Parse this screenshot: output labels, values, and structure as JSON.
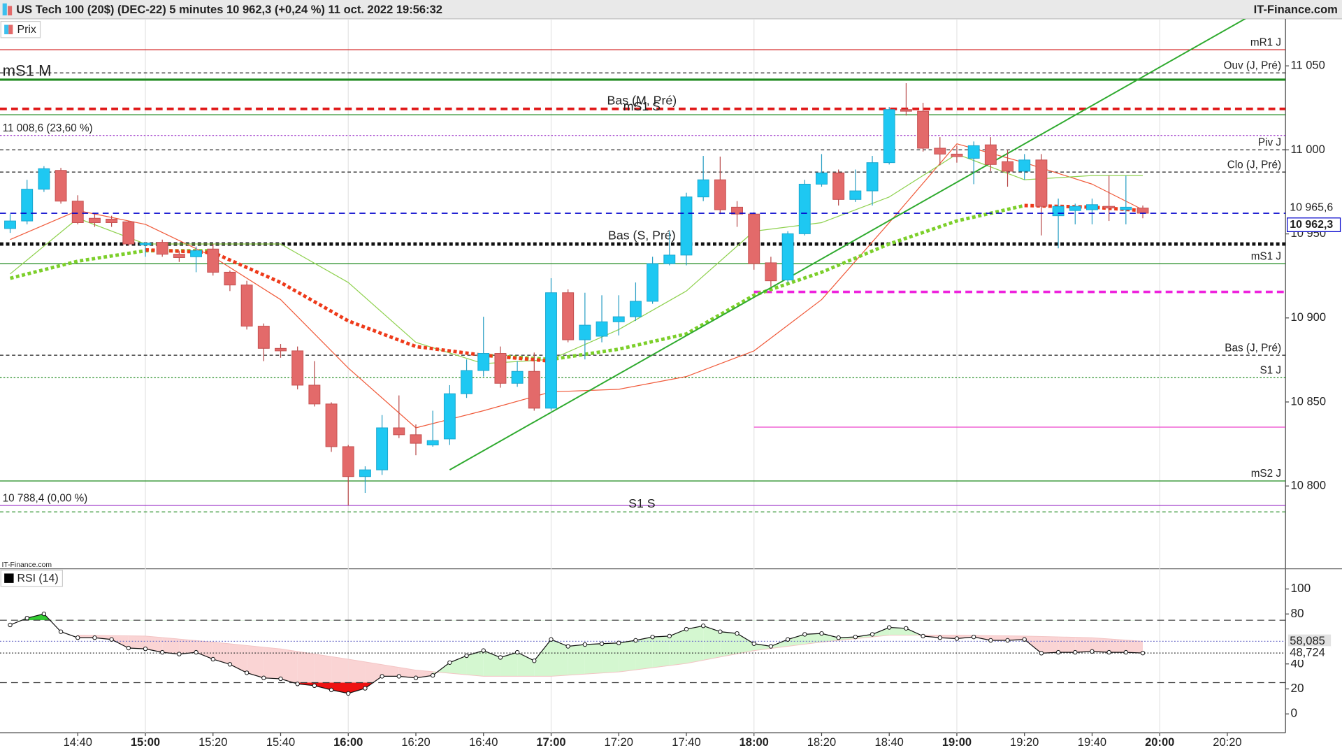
{
  "chart_data": [
    {
      "type": "candlestick",
      "title": "US Tech 100 (20$) (DEC-22) 5 minutes 10 962,3 (+0,24 %) 11 oct. 2022 19:56:32",
      "source": "IT-Finance.com",
      "watermark": "IT-Finance.com",
      "legend": "Prix",
      "up_color": "#1ec8f2",
      "down_color": "#e36a6a",
      "xlim": [
        857,
        1236.7
      ],
      "xticks": [
        {
          "value": 880,
          "label": "14:40"
        },
        {
          "value": 900,
          "label": "15:00"
        },
        {
          "value": 920,
          "label": "15:20"
        },
        {
          "value": 940,
          "label": "15:40"
        },
        {
          "value": 960,
          "label": "16:00"
        },
        {
          "value": 980,
          "label": "16:20"
        },
        {
          "value": 1000,
          "label": "16:40"
        },
        {
          "value": 1020,
          "label": "17:00"
        },
        {
          "value": 1040,
          "label": "17:20"
        },
        {
          "value": 1060,
          "label": "17:40"
        },
        {
          "value": 1080,
          "label": "18:00"
        },
        {
          "value": 1100,
          "label": "18:20"
        },
        {
          "value": 1120,
          "label": "18:40"
        },
        {
          "value": 1140,
          "label": "19:00"
        },
        {
          "value": 1160,
          "label": "19:20"
        },
        {
          "value": 1180,
          "label": "19:40"
        },
        {
          "value": 1200,
          "label": "20:00"
        },
        {
          "value": 1220,
          "label": "20:20"
        }
      ],
      "ylim": [
        10753,
        11079
      ],
      "yticks": [
        {
          "value": 11050,
          "label": "11 050"
        },
        {
          "value": 11000,
          "label": "11 000"
        },
        {
          "value": 10950,
          "label": "10 950"
        },
        {
          "value": 10900,
          "label": "10 900"
        },
        {
          "value": 10850,
          "label": "10 850"
        },
        {
          "value": 10800,
          "label": "10 800"
        }
      ],
      "x": [
        860,
        865,
        870,
        875,
        880,
        885,
        890,
        895,
        900,
        905,
        910,
        915,
        920,
        925,
        930,
        935,
        940,
        945,
        950,
        955,
        960,
        965,
        970,
        975,
        980,
        985,
        990,
        995,
        1000,
        1005,
        1010,
        1015,
        1020,
        1025,
        1030,
        1035,
        1040,
        1045,
        1050,
        1055,
        1060,
        1065,
        1070,
        1075,
        1080,
        1085,
        1090,
        1095,
        1100,
        1105,
        1110,
        1115,
        1120,
        1125,
        1130,
        1135,
        1140,
        1145,
        1150,
        1155,
        1160,
        1165,
        1170,
        1175,
        1180,
        1185,
        1190,
        1195
      ],
      "open": [
        10953.2,
        10957.7,
        10976.6,
        10987.8,
        10969.5,
        10959.3,
        10958.8,
        10957.2,
        10943.5,
        10945,
        10937.9,
        10936.4,
        10941,
        10927.2,
        10919.6,
        10895.1,
        10881.9,
        10880.4,
        10860,
        10848.8,
        10823.4,
        10805.6,
        10809.6,
        10834.6,
        10830.5,
        10824.4,
        10828,
        10854.9,
        10868.7,
        10878.9,
        10861.1,
        10868.2,
        10846.3,
        10915,
        10887,
        10889.1,
        10897.7,
        10900.7,
        10909.9,
        10932.3,
        10937.4,
        10972,
        10982.2,
        10965.9,
        10961.8,
        10932.8,
        10922.6,
        10950.1,
        10979.6,
        10986.3,
        10970.5,
        10975.6,
        10992.4,
        11024,
        11023,
        11001,
        10997.5,
        10995,
        11003,
        10993,
        10987.3,
        10994,
        10960.8,
        10963.9,
        10964.4,
        10966.4,
        10964.4,
        10965.4
      ],
      "high": [
        10961.8,
        10982.2,
        10990.3,
        10989.3,
        10973,
        10961.8,
        10960.8,
        10957.7,
        10945,
        10946.6,
        10940,
        10942.5,
        10944,
        10928.2,
        10922.1,
        10896.7,
        10884.5,
        10883,
        10874.3,
        10849.8,
        10824.4,
        10811.7,
        10842.2,
        10853.9,
        10836.6,
        10844.8,
        10860,
        10875.3,
        10900.7,
        10883,
        10874.3,
        10879.4,
        10923.6,
        10917,
        10915,
        10913.5,
        10913.5,
        10921.1,
        10936.4,
        10951.6,
        10974.5,
        10996.4,
        10996,
        10969.5,
        10962.8,
        10936.4,
        10951.6,
        10982.2,
        10997.5,
        10988.3,
        10988.3,
        10996.4,
        11025.5,
        11039.7,
        11028,
        11007.6,
        11002.5,
        11005,
        11007.6,
        11000,
        10997.5,
        10997.5,
        10971,
        10968,
        10971,
        10984.7,
        10984.7,
        10966.9
      ],
      "low": [
        10950.6,
        10955.7,
        10975,
        10968,
        10955.7,
        10954.2,
        10954.2,
        10943,
        10936.4,
        10936.4,
        10933.3,
        10927.2,
        10925.2,
        10916,
        10893.1,
        10874.3,
        10876.3,
        10857.5,
        10847.3,
        10820.3,
        10788.4,
        10795.9,
        10806.6,
        10828.5,
        10818.3,
        10823.4,
        10824.4,
        10852.4,
        10865.1,
        10858.5,
        10859,
        10844.8,
        10844.8,
        10885.5,
        10875.3,
        10885.5,
        10889.6,
        10898.2,
        10908.4,
        10931.3,
        10931.3,
        10969.5,
        10961.8,
        10954.2,
        10928.7,
        10918.6,
        10921.1,
        10949.1,
        10978.1,
        10966.9,
        10969,
        10966.9,
        10991.3,
        11020.4,
        10999,
        10990.8,
        10992.4,
        10979.6,
        10987.3,
        10978.1,
        10982.2,
        10949.1,
        10941.4,
        10955.7,
        10955.7,
        10957.7,
        10955.7,
        10959.3
      ],
      "close": [
        10957.7,
        10976.6,
        10988.8,
        10969.5,
        10956.7,
        10956.7,
        10956.7,
        10944,
        10944.5,
        10937.9,
        10935.9,
        10940,
        10927.2,
        10919.6,
        10895.1,
        10881.9,
        10880.4,
        10860,
        10848.8,
        10823.4,
        10805.6,
        10809.6,
        10834.6,
        10830.5,
        10825.4,
        10827,
        10854.9,
        10868.7,
        10878.9,
        10861.1,
        10868.2,
        10846.3,
        10915,
        10887,
        10895.7,
        10897.7,
        10900.7,
        10909.9,
        10932.3,
        10937.4,
        10972,
        10982.2,
        10964.4,
        10961.8,
        10932.3,
        10922.1,
        10950.1,
        10979.6,
        10986.3,
        10970.5,
        10975.6,
        10992.4,
        11024,
        11023,
        11001,
        10997.5,
        10996,
        11002.5,
        10991.3,
        10987.3,
        10994,
        10966.4,
        10966.4,
        10966.4,
        10967.4,
        10965.4,
        10965.9,
        10962.3
      ],
      "overlay_x": [
        860,
        880,
        900,
        920,
        940,
        960,
        980,
        1000,
        1020,
        1040,
        1060,
        1080,
        1100,
        1120,
        1140,
        1160,
        1180,
        1195
      ],
      "overlays": [
        {
          "color": "#f05a3a",
          "style": "solid",
          "values": [
            10946.6,
            10963.9,
            10955.7,
            10936.4,
            10910.9,
            10870.2,
            10834.6,
            10844.8,
            10856,
            10857.5,
            10865.1,
            10880.4,
            10910.9,
            10956.7,
            11003.6,
            10992.4,
            10979.6,
            10964.4
          ]
        },
        {
          "color": "#8fd14f",
          "style": "solid",
          "values": [
            10926.2,
            10959.3,
            10944,
            10944,
            10944,
            10921.1,
            10885.5,
            10872.8,
            10875.3,
            10893.1,
            10916,
            10951.6,
            10956.7,
            10972,
            10997.5,
            10982.2,
            10984.7,
            10984.7
          ]
        },
        {
          "color": "#7ccf2a",
          "style": "bold-dotted",
          "values": [
            10923.6,
            10933.8,
            10940,
            10940,
            null,
            null,
            null,
            10877.8,
            10875.3,
            10881.4,
            10890.5,
            10913.5,
            10927.2,
            10944,
            10957.7,
            10966.9,
            null,
            null
          ]
        },
        {
          "color": "#ee3a1a",
          "style": "bold-dotted",
          "values": [
            null,
            null,
            10940.5,
            10938.9,
            10921.1,
            10898.2,
            10883,
            10877.8,
            10874.3,
            null,
            null,
            null,
            null,
            null,
            null,
            10966.9,
            10965.9,
            10963.9
          ]
        }
      ],
      "trendline": {
        "color": "#2eaa2e",
        "x": [
          990,
          1227
        ],
        "values": [
          10809.6,
          11080
        ]
      },
      "levels": [
        {
          "value": 11059.6,
          "label": "mR1 J",
          "color": "#d42020",
          "style": "solid",
          "label_pos": "right"
        },
        {
          "value": 11045.8,
          "label": "Ouv (J, Pré)",
          "color": "#222222",
          "style": "dashed",
          "label_pos": "right"
        },
        {
          "value": 11041.8,
          "label": "mS1 M",
          "color": "#1f8a1f",
          "style": "bold",
          "label_pos": "left"
        },
        {
          "value": 11024.4,
          "label": "Bas (M, Pré)",
          "color": "#e01818",
          "style": "bold-dashed",
          "label_pos": "center"
        },
        {
          "value": 11020.9,
          "label": "mS1 S",
          "color": "#1f8a1f",
          "style": "solid",
          "label_pos": "center"
        },
        {
          "value": 11008.6,
          "label": "11 008,6 (23,60 %)",
          "color": "#9b30c8",
          "style": "dotted",
          "label_pos": "left"
        },
        {
          "value": 11000,
          "label": "Piv J",
          "color": "#222222",
          "style": "dashed",
          "label_pos": "right"
        },
        {
          "value": 10986.8,
          "label": "Clo (J, Pré)",
          "color": "#222222",
          "style": "dashed",
          "label_pos": "right"
        },
        {
          "value": 10944,
          "label": "Bas (S, Pré)",
          "color": "#111111",
          "style": "bold-dotted",
          "label_pos": "center"
        },
        {
          "value": 10932.3,
          "label": "mS1 J",
          "color": "#1f8a1f",
          "style": "solid",
          "label_pos": "right"
        },
        {
          "value": 10877.8,
          "label": "Bas (J, Pré)",
          "color": "#222222",
          "style": "dashed",
          "label_pos": "right"
        },
        {
          "value": 10864.5,
          "label": "S1 J",
          "color": "#1f8a1f",
          "style": "dotted",
          "label_pos": "right"
        },
        {
          "value": 10803,
          "label": "mS2 J",
          "color": "#1f8a1f",
          "style": "solid",
          "label_pos": "right"
        },
        {
          "value": 10788.4,
          "label": "10 788,4 (0,00 %)",
          "color": "#9b30c8",
          "style": "solid",
          "label_pos": "left"
        },
        {
          "value": 10784.6,
          "label": "S1 S",
          "color": "#1f8a1f",
          "style": "dashed",
          "label_pos": "center"
        }
      ],
      "zones": [
        {
          "value": 10915.5,
          "from": 1080,
          "color": "#ee22dd",
          "style": "bold-dashed"
        },
        {
          "value": 10835,
          "from": 1080,
          "color": "#ee44cc",
          "style": "solid"
        }
      ],
      "price_labels": [
        {
          "value": 10965.6,
          "label": "10 965,6",
          "color": "#ff3300",
          "line": false
        },
        {
          "value": 10962.3,
          "label": "10 962,3",
          "color": "#0000cc",
          "line": true
        }
      ]
    },
    {
      "type": "line",
      "legend": "RSI (14)",
      "color": "#111111",
      "x": [
        860,
        865,
        870,
        875,
        880,
        885,
        890,
        895,
        900,
        905,
        910,
        915,
        920,
        925,
        930,
        935,
        940,
        945,
        950,
        955,
        960,
        965,
        970,
        975,
        980,
        985,
        990,
        995,
        1000,
        1005,
        1010,
        1015,
        1020,
        1025,
        1030,
        1035,
        1040,
        1045,
        1050,
        1055,
        1060,
        1065,
        1070,
        1075,
        1080,
        1085,
        1090,
        1095,
        1100,
        1105,
        1110,
        1115,
        1120,
        1125,
        1130,
        1135,
        1140,
        1145,
        1150,
        1155,
        1160,
        1165,
        1170,
        1175,
        1180,
        1185,
        1190,
        1195
      ],
      "values": [
        71.2,
        76.7,
        80.1,
        65.8,
        61,
        61,
        59.6,
        52.7,
        52.1,
        49.3,
        47.9,
        49.3,
        43.8,
        39.7,
        32.9,
        28.8,
        28.1,
        24,
        22.6,
        19.2,
        16.4,
        20.5,
        30.1,
        30.1,
        28.8,
        30.8,
        41.1,
        46.6,
        50.7,
        45.2,
        49.3,
        42.5,
        59.6,
        54.1,
        55.5,
        56.2,
        56.8,
        58.9,
        61.6,
        62.3,
        67.8,
        70.5,
        65.8,
        64.4,
        56.2,
        54.1,
        59.6,
        63.7,
        64.4,
        61,
        61.6,
        63.7,
        69.2,
        68.5,
        62.3,
        61,
        60.3,
        61.6,
        58.9,
        58.9,
        59.6,
        48.6,
        49.3,
        49.3,
        50,
        49.3,
        49.3,
        48.724
      ],
      "signal_x": [
        880,
        900,
        920,
        940,
        960,
        980,
        1000,
        1020,
        1040,
        1060,
        1080,
        1100,
        1120,
        1140,
        1160,
        1180,
        1195
      ],
      "signal": [
        63,
        62.3,
        57.5,
        52,
        43.8,
        35,
        30.1,
        30.1,
        33.6,
        40.4,
        50.7,
        57.5,
        63,
        63,
        62.3,
        61,
        58.085
      ],
      "ylim": [
        -14.4,
        115.8
      ],
      "yticks": [
        100,
        80,
        40,
        20,
        0
      ],
      "levels": [
        75,
        25
      ],
      "current": [
        {
          "value": 58.085,
          "label": "58,085",
          "color": "#7777cc",
          "text_color": "#777777",
          "box": "#e2e2e2"
        },
        {
          "value": 48.724,
          "label": "48,724",
          "color": "#333333",
          "text_color": "#111111",
          "box": "#ffffff"
        }
      ]
    }
  ]
}
